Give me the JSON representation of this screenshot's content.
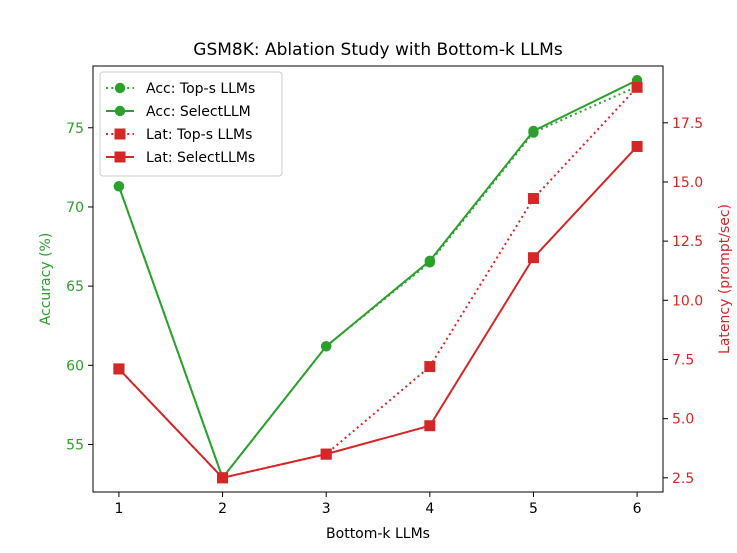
{
  "chart_data": {
    "type": "line",
    "title": "GSM8K: Ablation Study with Bottom-k LLMs",
    "xlabel": "Bottom-k LLMs",
    "ylabel_left": "Accuracy (%)",
    "ylabel_right": "Latency (prompt/sec)",
    "x": [
      1,
      2,
      3,
      4,
      5,
      6
    ],
    "x_ticks": [
      "1",
      "2",
      "3",
      "4",
      "5",
      "6"
    ],
    "xlim": [
      0.75,
      6.25
    ],
    "ylim_left": [
      52.0,
      78.9
    ],
    "ylim_right": [
      1.9,
      19.9
    ],
    "y_ticks_left": [
      "55",
      "60",
      "65",
      "70",
      "75"
    ],
    "y_ticks_right": [
      "2.5",
      "5.0",
      "7.5",
      "10.0",
      "12.5",
      "15.0",
      "17.5"
    ],
    "colors": {
      "accuracy": "#2ca02c",
      "latency": "#d62728"
    },
    "legend_position": "upper left",
    "series": [
      {
        "name": "Acc: Top-s LLMs",
        "axis": "left",
        "style": "dotted",
        "marker": "circle",
        "values": [
          71.3,
          52.9,
          61.2,
          66.5,
          74.7,
          77.6
        ]
      },
      {
        "name": "Acc: SelectLLM",
        "axis": "left",
        "style": "solid",
        "marker": "circle",
        "values": [
          71.3,
          52.9,
          61.2,
          66.6,
          74.8,
          78.0
        ]
      },
      {
        "name": "Lat: Top-s LLMs",
        "axis": "right",
        "style": "dotted",
        "marker": "square",
        "values": [
          7.1,
          2.5,
          3.5,
          7.2,
          14.3,
          19.0
        ]
      },
      {
        "name": "Lat: SelectLLMs",
        "axis": "right",
        "style": "solid",
        "marker": "square",
        "values": [
          7.1,
          2.5,
          3.5,
          4.7,
          11.8,
          16.5
        ]
      }
    ]
  }
}
